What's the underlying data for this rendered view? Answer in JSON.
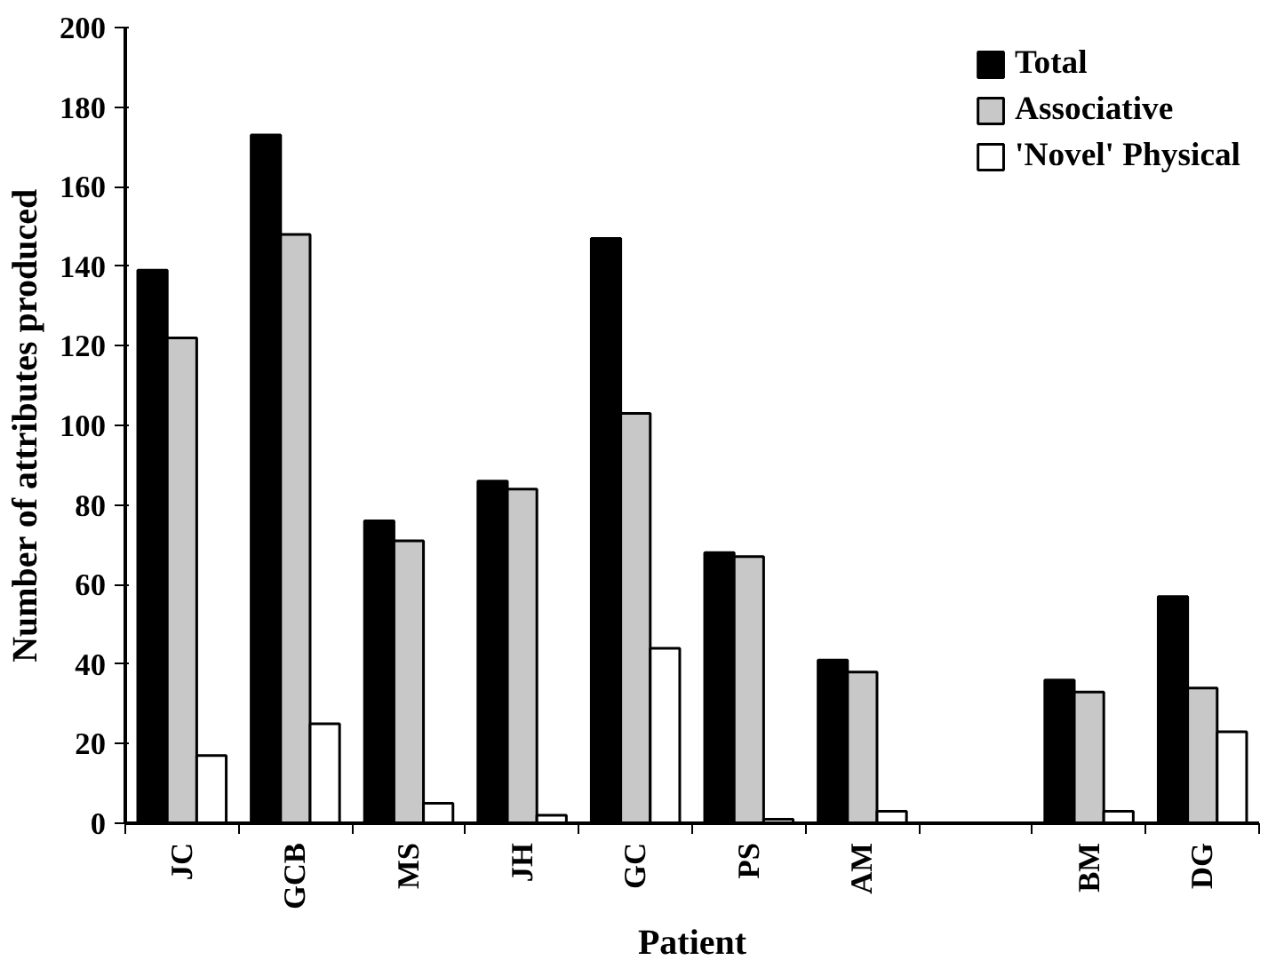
{
  "chart_data": {
    "type": "bar",
    "xlabel": "Patient",
    "ylabel": "Number of attributes produced",
    "categories": [
      "JC",
      "GCB",
      "MS",
      "JH",
      "GC",
      "PS",
      "AM",
      null,
      "BM",
      "DG"
    ],
    "series": [
      {
        "name": "Total",
        "color": "#000000",
        "values": [
          139,
          173,
          76,
          86,
          147,
          68,
          41,
          null,
          36,
          57
        ]
      },
      {
        "name": "Associative",
        "color": "#c8c8c8",
        "values": [
          122,
          148,
          71,
          84,
          103,
          67,
          38,
          null,
          33,
          34
        ]
      },
      {
        "name": "'Novel' Physical",
        "color": "#ffffff",
        "values": [
          17,
          25,
          5,
          2,
          44,
          1,
          3,
          null,
          3,
          23
        ]
      }
    ],
    "ylim": [
      0,
      200
    ],
    "yticks": [
      0,
      20,
      40,
      60,
      80,
      100,
      120,
      140,
      160,
      180,
      200
    ],
    "grid": false,
    "legend": "top right"
  }
}
